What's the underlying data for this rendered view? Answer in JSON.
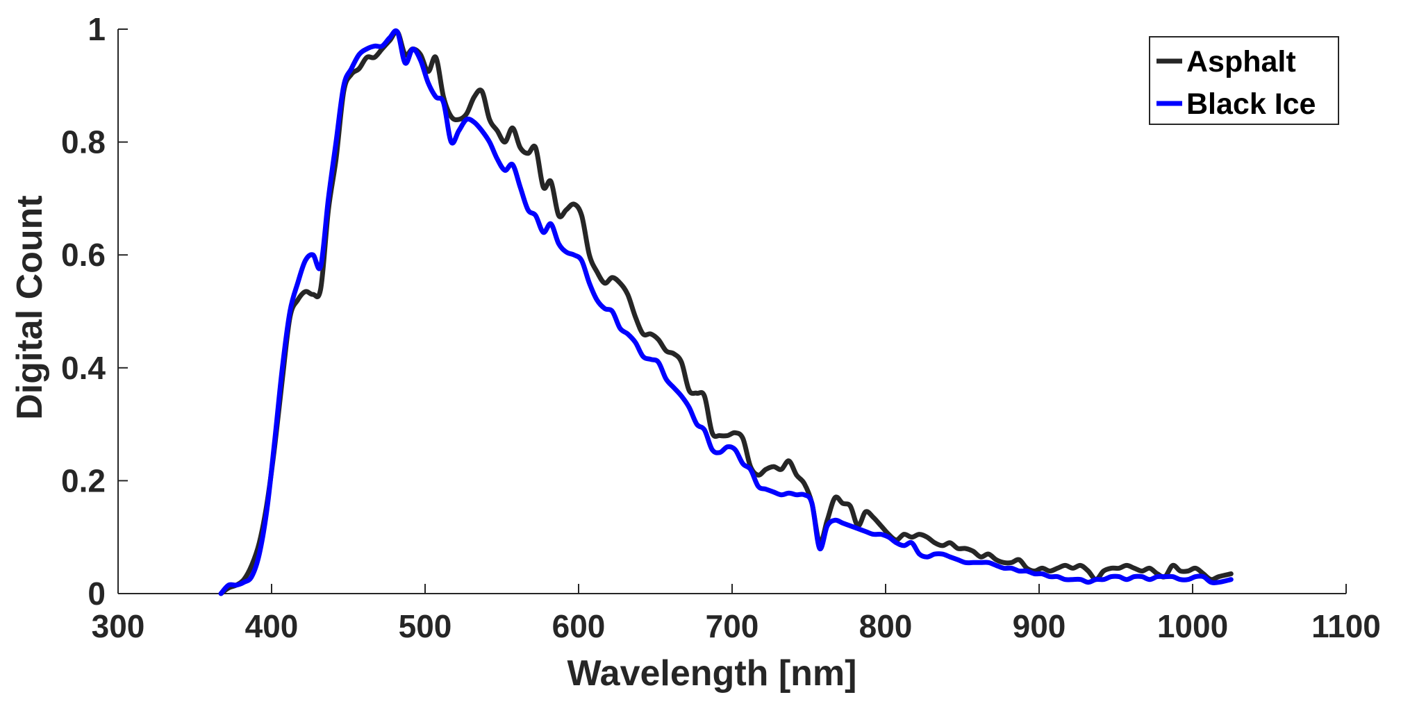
{
  "chart_data": {
    "type": "line",
    "title": "",
    "xlabel": "Wavelength [nm]",
    "ylabel": "Digital Count",
    "xlim": [
      300,
      1100
    ],
    "ylim": [
      0,
      1
    ],
    "xticks": [
      300,
      400,
      500,
      600,
      700,
      800,
      900,
      1000,
      1100
    ],
    "yticks": [
      0,
      0.2,
      0.4,
      0.6,
      0.8,
      1
    ],
    "xtick_labels": [
      "300",
      "400",
      "500",
      "600",
      "700",
      "800",
      "900",
      "1000",
      "1100"
    ],
    "ytick_labels": [
      "0",
      "0.2",
      "0.4",
      "0.6",
      "0.8",
      "1"
    ],
    "grid": false,
    "legend_position": "top-right",
    "series": [
      {
        "name": "Asphalt",
        "color": "#262626",
        "x": [
          367,
          372,
          377,
          382,
          387,
          392,
          397,
          402,
          407,
          412,
          417,
          422,
          427,
          432,
          437,
          442,
          447,
          452,
          457,
          462,
          467,
          472,
          477,
          482,
          487,
          492,
          497,
          502,
          507,
          512,
          517,
          522,
          527,
          532,
          537,
          542,
          547,
          552,
          557,
          562,
          567,
          572,
          577,
          582,
          587,
          592,
          597,
          602,
          607,
          612,
          617,
          622,
          627,
          632,
          637,
          642,
          647,
          652,
          657,
          662,
          667,
          672,
          677,
          682,
          687,
          692,
          697,
          702,
          707,
          712,
          717,
          722,
          727,
          732,
          737,
          742,
          747,
          752,
          757,
          762,
          767,
          772,
          777,
          782,
          787,
          792,
          797,
          802,
          807,
          812,
          817,
          822,
          827,
          832,
          837,
          842,
          847,
          852,
          857,
          862,
          867,
          872,
          877,
          882,
          887,
          892,
          897,
          902,
          907,
          912,
          917,
          922,
          927,
          932,
          937,
          942,
          947,
          952,
          957,
          962,
          967,
          972,
          977,
          982,
          987,
          992,
          997,
          1002,
          1007,
          1012,
          1017,
          1025
        ],
        "values": [
          0.0,
          0.01,
          0.015,
          0.025,
          0.05,
          0.09,
          0.16,
          0.26,
          0.38,
          0.49,
          0.52,
          0.535,
          0.53,
          0.54,
          0.68,
          0.77,
          0.89,
          0.92,
          0.93,
          0.95,
          0.95,
          0.965,
          0.98,
          0.995,
          0.955,
          0.965,
          0.955,
          0.925,
          0.95,
          0.88,
          0.845,
          0.84,
          0.85,
          0.88,
          0.89,
          0.84,
          0.82,
          0.8,
          0.825,
          0.79,
          0.78,
          0.79,
          0.72,
          0.73,
          0.67,
          0.68,
          0.69,
          0.67,
          0.6,
          0.57,
          0.55,
          0.56,
          0.55,
          0.53,
          0.49,
          0.46,
          0.46,
          0.45,
          0.43,
          0.425,
          0.41,
          0.36,
          0.355,
          0.35,
          0.285,
          0.28,
          0.28,
          0.285,
          0.275,
          0.225,
          0.21,
          0.22,
          0.225,
          0.22,
          0.235,
          0.21,
          0.195,
          0.16,
          0.09,
          0.13,
          0.17,
          0.16,
          0.155,
          0.12,
          0.145,
          0.135,
          0.12,
          0.105,
          0.095,
          0.105,
          0.1,
          0.105,
          0.1,
          0.09,
          0.085,
          0.09,
          0.08,
          0.08,
          0.075,
          0.065,
          0.07,
          0.06,
          0.055,
          0.055,
          0.06,
          0.045,
          0.04,
          0.045,
          0.04,
          0.045,
          0.05,
          0.045,
          0.05,
          0.04,
          0.025,
          0.04,
          0.045,
          0.045,
          0.05,
          0.045,
          0.04,
          0.045,
          0.035,
          0.03,
          0.05,
          0.04,
          0.04,
          0.045,
          0.035,
          0.025,
          0.03,
          0.035
        ]
      },
      {
        "name": "Black Ice",
        "color": "#0000ff",
        "x": [
          367,
          372,
          377,
          382,
          387,
          392,
          397,
          402,
          407,
          412,
          417,
          422,
          427,
          432,
          437,
          442,
          447,
          452,
          457,
          462,
          467,
          472,
          477,
          482,
          487,
          492,
          497,
          502,
          507,
          512,
          517,
          522,
          527,
          532,
          537,
          542,
          547,
          552,
          557,
          562,
          567,
          572,
          577,
          582,
          587,
          592,
          597,
          602,
          607,
          612,
          617,
          622,
          627,
          632,
          637,
          642,
          647,
          652,
          657,
          662,
          667,
          672,
          677,
          682,
          687,
          692,
          697,
          702,
          707,
          712,
          717,
          722,
          727,
          732,
          737,
          742,
          747,
          752,
          757,
          762,
          767,
          772,
          777,
          782,
          787,
          792,
          797,
          802,
          807,
          812,
          817,
          822,
          827,
          832,
          837,
          842,
          847,
          852,
          857,
          862,
          867,
          872,
          877,
          882,
          887,
          892,
          897,
          902,
          907,
          912,
          917,
          922,
          927,
          932,
          937,
          942,
          947,
          952,
          957,
          962,
          967,
          972,
          977,
          982,
          987,
          992,
          997,
          1002,
          1007,
          1012,
          1017,
          1025
        ],
        "values": [
          0.0,
          0.015,
          0.015,
          0.02,
          0.03,
          0.07,
          0.15,
          0.27,
          0.4,
          0.5,
          0.55,
          0.59,
          0.6,
          0.58,
          0.7,
          0.8,
          0.9,
          0.93,
          0.955,
          0.965,
          0.97,
          0.97,
          0.985,
          0.995,
          0.94,
          0.965,
          0.945,
          0.905,
          0.88,
          0.87,
          0.8,
          0.82,
          0.84,
          0.835,
          0.82,
          0.8,
          0.77,
          0.75,
          0.76,
          0.72,
          0.68,
          0.67,
          0.64,
          0.655,
          0.62,
          0.605,
          0.6,
          0.59,
          0.55,
          0.52,
          0.505,
          0.5,
          0.47,
          0.46,
          0.445,
          0.42,
          0.415,
          0.41,
          0.38,
          0.365,
          0.35,
          0.33,
          0.3,
          0.29,
          0.255,
          0.25,
          0.26,
          0.255,
          0.23,
          0.22,
          0.19,
          0.185,
          0.18,
          0.175,
          0.178,
          0.175,
          0.175,
          0.16,
          0.08,
          0.12,
          0.13,
          0.125,
          0.12,
          0.115,
          0.11,
          0.105,
          0.105,
          0.1,
          0.09,
          0.085,
          0.09,
          0.07,
          0.065,
          0.07,
          0.07,
          0.065,
          0.06,
          0.055,
          0.055,
          0.055,
          0.055,
          0.05,
          0.045,
          0.045,
          0.04,
          0.04,
          0.035,
          0.035,
          0.03,
          0.03,
          0.025,
          0.025,
          0.025,
          0.02,
          0.025,
          0.025,
          0.03,
          0.03,
          0.025,
          0.03,
          0.03,
          0.025,
          0.03,
          0.03,
          0.03,
          0.025,
          0.025,
          0.03,
          0.03,
          0.02,
          0.02,
          0.025
        ]
      }
    ]
  }
}
